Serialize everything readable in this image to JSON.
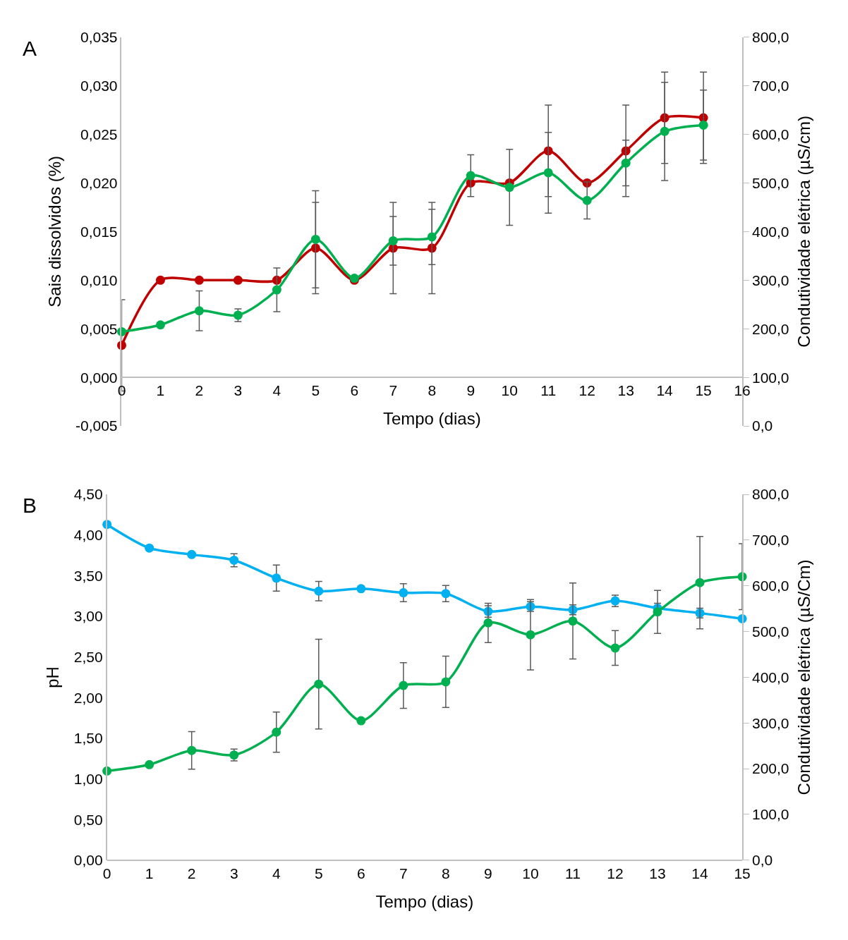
{
  "chart_data": [
    {
      "type": "line",
      "title": "A",
      "xlabel": "Tempo (dias)",
      "ylabel": "Sais dissolvidos (%)",
      "y2label": "Condutividade elétrica (µS/cm)",
      "x": [
        0,
        1,
        2,
        3,
        4,
        5,
        6,
        7,
        8,
        9,
        10,
        11,
        12,
        13,
        14,
        15
      ],
      "marker": "circle",
      "line_style": "solid",
      "xlim": [
        0,
        16
      ],
      "xticks": [
        0,
        1,
        2,
        3,
        4,
        5,
        6,
        7,
        8,
        9,
        10,
        11,
        12,
        13,
        14,
        15,
        16
      ],
      "ylim": [
        -0.005,
        0.035
      ],
      "yticks": [
        {
          "value": -0.005,
          "label": "-0,005"
        },
        {
          "value": 0,
          "label": "0,000"
        },
        {
          "value": 0.005,
          "label": "0,005"
        },
        {
          "value": 0.01,
          "label": "0,010"
        },
        {
          "value": 0.015,
          "label": "0,015"
        },
        {
          "value": 0.02,
          "label": "0,020"
        },
        {
          "value": 0.025,
          "label": "0,025"
        },
        {
          "value": 0.03,
          "label": "0,030"
        },
        {
          "value": 0.035,
          "label": "0,035"
        }
      ],
      "y2lim": [
        0,
        800
      ],
      "y2ticks": [
        {
          "value": 0,
          "label": "0,0"
        },
        {
          "value": 100,
          "label": "100,0"
        },
        {
          "value": 200,
          "label": "200,0"
        },
        {
          "value": 300,
          "label": "300,0"
        },
        {
          "value": 400,
          "label": "400,0"
        },
        {
          "value": 500,
          "label": "500,0"
        },
        {
          "value": 600,
          "label": "600,0"
        },
        {
          "value": 700,
          "label": "700,0"
        },
        {
          "value": 800,
          "label": "800,0"
        }
      ],
      "series": [
        {
          "color": "#c00000",
          "axis": "y",
          "values": [
            0.0033,
            0.01,
            0.01,
            0.01,
            0.01,
            0.0133,
            0.01,
            0.0133,
            0.0133,
            0.02,
            0.02,
            0.0233,
            0.02,
            0.0233,
            0.0267,
            0.0267
          ],
          "errors": [
            0.0047,
            null,
            null,
            null,
            null,
            0.0047,
            null,
            0.0047,
            0.0047,
            null,
            null,
            0.0047,
            null,
            0.0047,
            0.0047,
            0.0047
          ]
        },
        {
          "color": "#00b050",
          "axis": "y2",
          "values": [
            194,
            208,
            237,
            228,
            280,
            384,
            304,
            381,
            389,
            515,
            491,
            521,
            464,
            541,
            606,
            619
          ],
          "errors": [
            null,
            null,
            41,
            13,
            45,
            100,
            null,
            50,
            57,
            43,
            78,
            83,
            38,
            47,
            101,
            72
          ]
        }
      ]
    },
    {
      "type": "line",
      "title": "B",
      "xlabel": "Tempo (dias)",
      "ylabel": "pH",
      "y2label": "Condutividade elétrica (µS/Cm)",
      "x": [
        0,
        1,
        2,
        3,
        4,
        5,
        6,
        7,
        8,
        9,
        10,
        11,
        12,
        13,
        14,
        15
      ],
      "marker": "circle",
      "line_style": "solid",
      "xlim": [
        0,
        15
      ],
      "xticks": [
        0,
        1,
        2,
        3,
        4,
        5,
        6,
        7,
        8,
        9,
        10,
        11,
        12,
        13,
        14,
        15
      ],
      "ylim": [
        0,
        4.5
      ],
      "yticks": [
        {
          "value": 0,
          "label": "0,00"
        },
        {
          "value": 0.5,
          "label": "0,50"
        },
        {
          "value": 1,
          "label": "1,00"
        },
        {
          "value": 1.5,
          "label": "1,50"
        },
        {
          "value": 2,
          "label": "2,00"
        },
        {
          "value": 2.5,
          "label": "2,50"
        },
        {
          "value": 3,
          "label": "3,00"
        },
        {
          "value": 3.5,
          "label": "3,50"
        },
        {
          "value": 4,
          "label": "4,00"
        },
        {
          "value": 4.5,
          "label": "4,50"
        }
      ],
      "y2lim": [
        0,
        800
      ],
      "y2ticks": [
        {
          "value": 0,
          "label": "0,0"
        },
        {
          "value": 100,
          "label": "100,0"
        },
        {
          "value": 200,
          "label": "200,0"
        },
        {
          "value": 300,
          "label": "300,0"
        },
        {
          "value": 400,
          "label": "400,0"
        },
        {
          "value": 500,
          "label": "500,0"
        },
        {
          "value": 600,
          "label": "600,0"
        },
        {
          "value": 700,
          "label": "700,0"
        },
        {
          "value": 800,
          "label": "800,0"
        }
      ],
      "series": [
        {
          "color": "#00b0f0",
          "axis": "y",
          "values": [
            4.13,
            3.84,
            3.76,
            3.69,
            3.47,
            3.31,
            3.34,
            3.29,
            3.28,
            3.06,
            3.12,
            3.08,
            3.19,
            3.1,
            3.04,
            2.97
          ],
          "errors": [
            null,
            null,
            null,
            0.08,
            0.16,
            0.12,
            null,
            0.11,
            0.1,
            0.07,
            0.06,
            0.06,
            0.07,
            0.06,
            0.06,
            null
          ]
        },
        {
          "color": "#00b050",
          "axis": "y2",
          "values": [
            195,
            209,
            240,
            230,
            280,
            385,
            305,
            382,
            390,
            519,
            493,
            523,
            464,
            543,
            607,
            620
          ],
          "errors": [
            null,
            null,
            41,
            13,
            44,
            98,
            null,
            50,
            56,
            43,
            77,
            83,
            38,
            47,
            101,
            72
          ]
        }
      ]
    }
  ]
}
